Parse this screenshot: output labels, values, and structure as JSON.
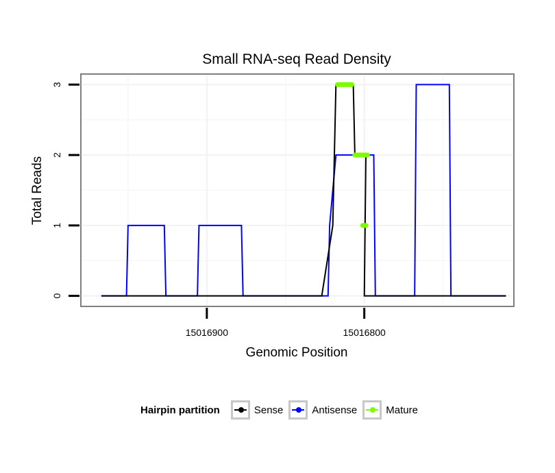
{
  "chart_data": {
    "type": "line",
    "title": "Small RNA-seq Read Density",
    "xlabel": "Genomic Position",
    "ylabel": "Total Reads",
    "x_reversed": true,
    "xlim": [
      15016980,
      15016705
    ],
    "ylim": [
      -0.15,
      3.15
    ],
    "x_ticks": [
      15016900,
      15016800
    ],
    "x_tick_labels": [
      "15016900",
      "15016800"
    ],
    "y_ticks": [
      0,
      1,
      2,
      3
    ],
    "y_tick_labels": [
      "0",
      "1",
      "2",
      "3"
    ],
    "grid": true,
    "legend": {
      "title": "Hairpin partition",
      "position": "bottom",
      "items": [
        {
          "label": "Sense",
          "color": "#000000"
        },
        {
          "label": "Antisense",
          "color": "#0000ff"
        },
        {
          "label": "Mature",
          "color": "#7cfc00"
        }
      ]
    },
    "series": [
      {
        "name": "Sense",
        "color": "#000000",
        "x": [
          15016967,
          15016827,
          15016820,
          15016820,
          15016818,
          15016807,
          15016806,
          15016799,
          15016800,
          15016710
        ],
        "y": [
          0,
          0,
          1,
          1,
          3,
          3,
          2,
          2,
          0,
          0
        ]
      },
      {
        "name": "Antisense",
        "color": "#0000ff",
        "x": [
          15016967,
          15016951,
          15016950,
          15016927,
          15016926,
          15016906,
          15016905,
          15016878,
          15016877,
          15016823,
          15016822,
          15016818,
          15016817,
          15016794,
          15016793,
          15016768,
          15016767,
          15016746,
          15016745,
          15016710
        ],
        "y": [
          0,
          0,
          1,
          1,
          0,
          0,
          1,
          1,
          0,
          0,
          1,
          2,
          2,
          2,
          0,
          0,
          3,
          3,
          0,
          0
        ]
      }
    ],
    "mature_segments": [
      {
        "x_start": 15016817,
        "x_end": 15016808,
        "y": 3
      },
      {
        "x_start": 15016806,
        "x_end": 15016798,
        "y": 2
      },
      {
        "x_start": 15016801,
        "x_end": 15016799,
        "y": 1
      }
    ],
    "mature_color": "#7cfc00"
  }
}
